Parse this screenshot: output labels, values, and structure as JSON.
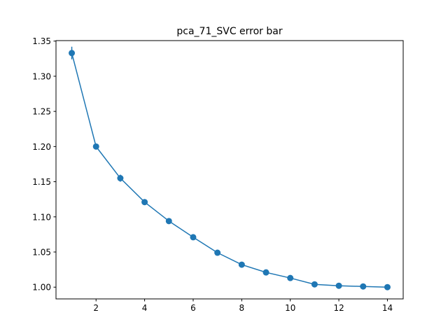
{
  "chart_data": {
    "type": "line",
    "title": "pca_71_SVC error bar",
    "xlabel": "",
    "ylabel": "",
    "xlim": [
      0.35,
      14.65
    ],
    "ylim": [
      0.9833,
      1.3507
    ],
    "xticks": [
      2,
      4,
      6,
      8,
      10,
      12,
      14
    ],
    "yticks": [
      1.0,
      1.05,
      1.1,
      1.15,
      1.2,
      1.25,
      1.3,
      1.35
    ],
    "ytick_labels": [
      "1.00",
      "1.05",
      "1.10",
      "1.15",
      "1.20",
      "1.25",
      "1.30",
      "1.35"
    ],
    "grid": false,
    "series": [
      {
        "x": [
          1,
          2,
          3,
          4,
          5,
          6,
          7,
          8,
          9,
          10,
          11,
          12,
          13,
          14
        ],
        "y": [
          1.333,
          1.2,
          1.155,
          1.121,
          1.094,
          1.071,
          1.049,
          1.032,
          1.021,
          1.013,
          1.004,
          1.002,
          1.001,
          1.0
        ],
        "yerr": [
          0.009,
          0.004,
          0.005,
          0.003,
          0.002,
          0.002,
          0.001,
          0.001,
          0.001,
          0.001,
          0.001,
          0.001,
          0.001,
          0.0
        ],
        "color": "#1f77b4"
      }
    ]
  }
}
